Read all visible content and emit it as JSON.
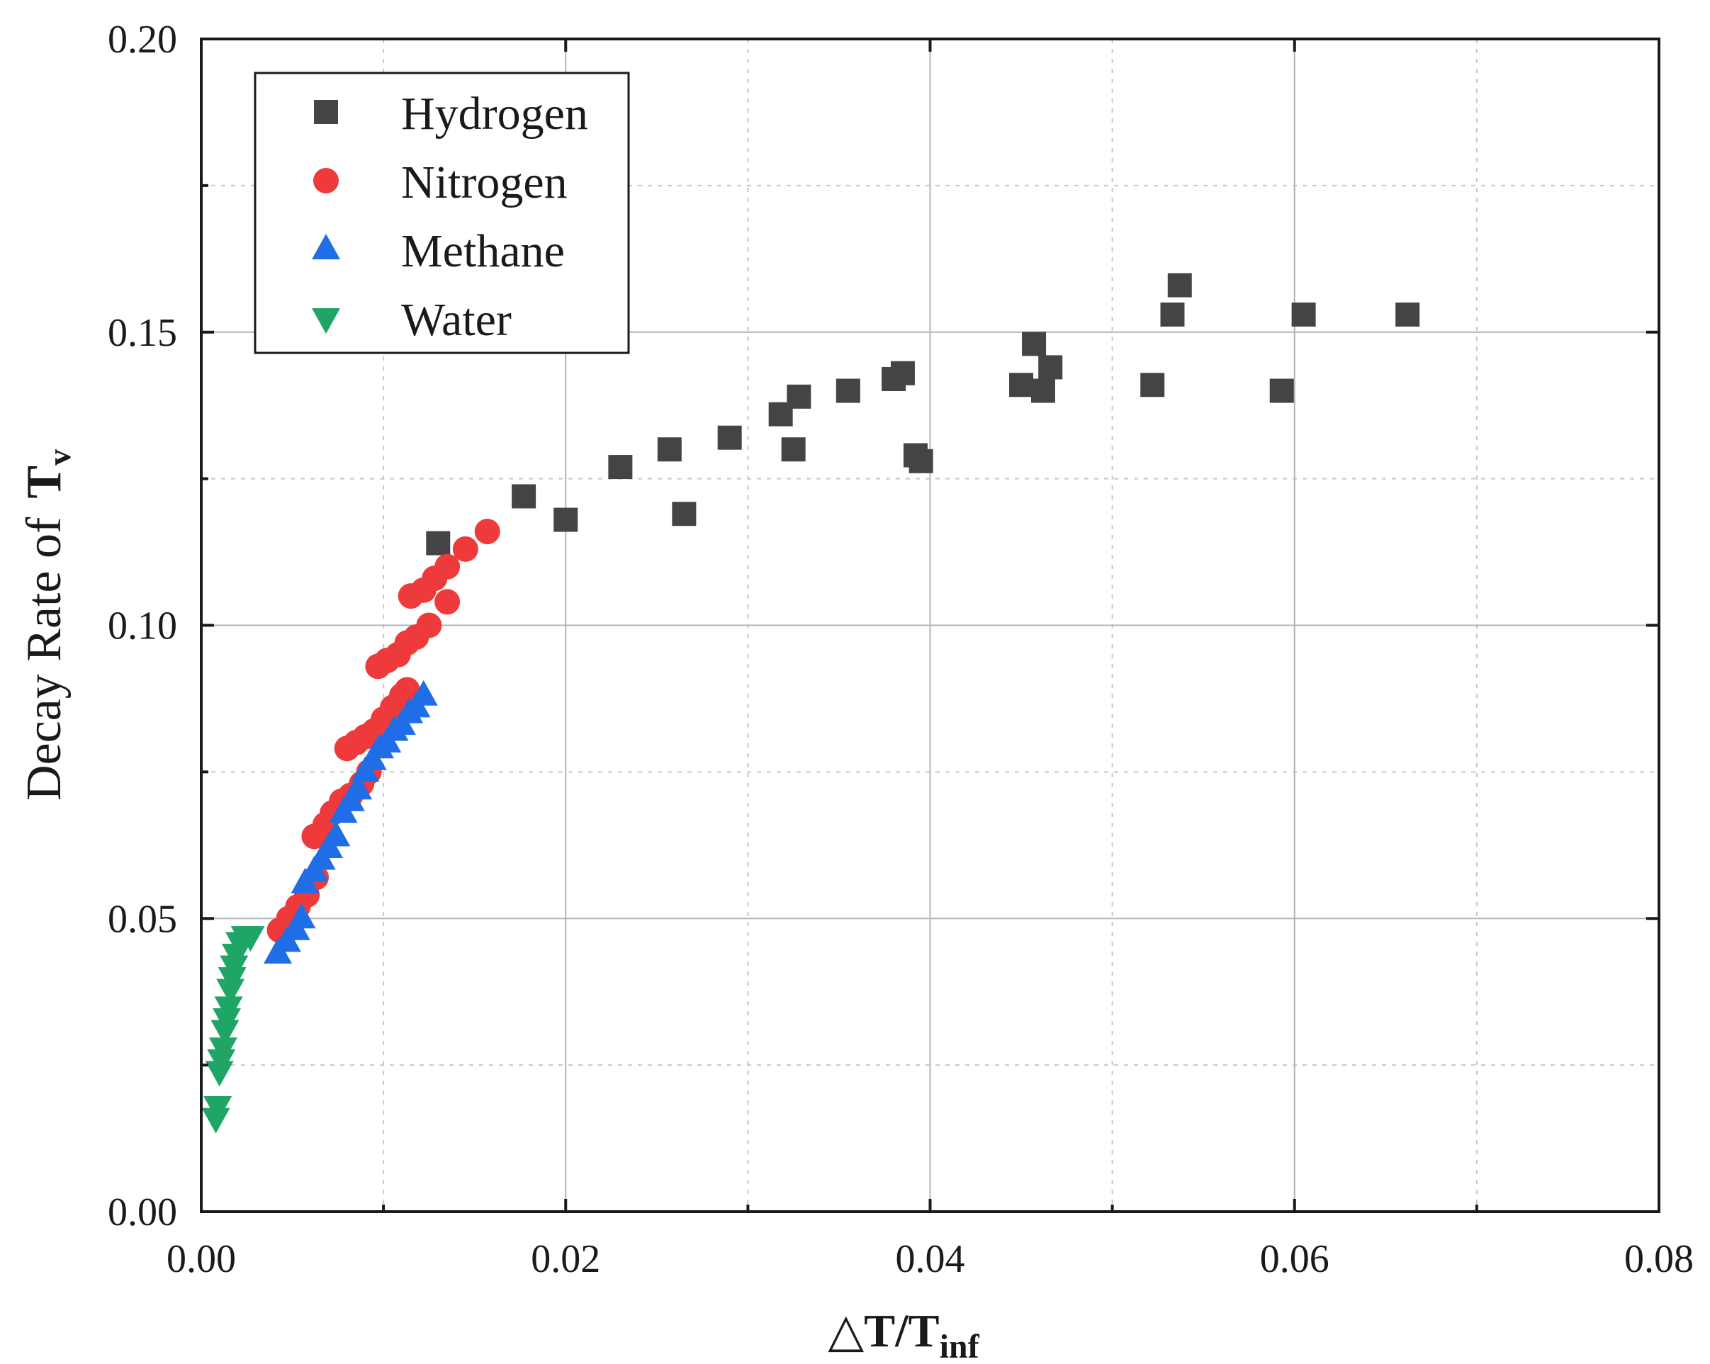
{
  "chart_data": {
    "type": "scatter",
    "title": "",
    "xlabel": {
      "main": "△T/T",
      "sub": "inf"
    },
    "ylabel": {
      "main": "Decay Rate of",
      "symbol": "T",
      "sub": "v"
    },
    "xlim": [
      0,
      0.08
    ],
    "ylim": [
      0,
      0.2
    ],
    "x_major_ticks": [
      0.0,
      0.02,
      0.04,
      0.06,
      0.08
    ],
    "x_tick_labels": [
      "0.00",
      "0.02",
      "0.04",
      "0.06",
      "0.08"
    ],
    "x_minor_ticks": [
      0.01,
      0.03,
      0.05,
      0.07
    ],
    "y_major_ticks": [
      0.0,
      0.05,
      0.1,
      0.15,
      0.2
    ],
    "y_tick_labels": [
      "0.00",
      "0.05",
      "0.10",
      "0.15",
      "0.20"
    ],
    "y_minor_ticks": [
      0.025,
      0.075,
      0.125,
      0.175
    ],
    "grid": true,
    "legend_position": "top-left",
    "series": [
      {
        "name": "Hydrogen",
        "marker": "square",
        "color": "#444444",
        "points": [
          [
            0.013,
            0.114
          ],
          [
            0.0177,
            0.122
          ],
          [
            0.02,
            0.118
          ],
          [
            0.023,
            0.127
          ],
          [
            0.0257,
            0.13
          ],
          [
            0.0265,
            0.119
          ],
          [
            0.029,
            0.132
          ],
          [
            0.0318,
            0.136
          ],
          [
            0.0325,
            0.13
          ],
          [
            0.0328,
            0.139
          ],
          [
            0.0355,
            0.14
          ],
          [
            0.038,
            0.142
          ],
          [
            0.0385,
            0.143
          ],
          [
            0.0392,
            0.129
          ],
          [
            0.0395,
            0.128
          ],
          [
            0.045,
            0.141
          ],
          [
            0.0457,
            0.148
          ],
          [
            0.0462,
            0.14
          ],
          [
            0.0466,
            0.144
          ],
          [
            0.0522,
            0.141
          ],
          [
            0.0533,
            0.153
          ],
          [
            0.0537,
            0.158
          ],
          [
            0.0593,
            0.14
          ],
          [
            0.0605,
            0.153
          ],
          [
            0.0662,
            0.153
          ]
        ]
      },
      {
        "name": "Nitrogen",
        "marker": "circle",
        "color": "#ee3a3a",
        "points": [
          [
            0.0043,
            0.048
          ],
          [
            0.0048,
            0.05
          ],
          [
            0.0053,
            0.052
          ],
          [
            0.0058,
            0.054
          ],
          [
            0.0063,
            0.057
          ],
          [
            0.0062,
            0.064
          ],
          [
            0.0068,
            0.066
          ],
          [
            0.0072,
            0.068
          ],
          [
            0.0077,
            0.07
          ],
          [
            0.0082,
            0.071
          ],
          [
            0.0088,
            0.073
          ],
          [
            0.0092,
            0.075
          ],
          [
            0.008,
            0.079
          ],
          [
            0.0085,
            0.08
          ],
          [
            0.009,
            0.081
          ],
          [
            0.0095,
            0.082
          ],
          [
            0.01,
            0.084
          ],
          [
            0.0105,
            0.086
          ],
          [
            0.011,
            0.088
          ],
          [
            0.0113,
            0.089
          ],
          [
            0.0097,
            0.093
          ],
          [
            0.0102,
            0.094
          ],
          [
            0.0108,
            0.095
          ],
          [
            0.0113,
            0.097
          ],
          [
            0.0118,
            0.098
          ],
          [
            0.0125,
            0.1
          ],
          [
            0.0135,
            0.104
          ],
          [
            0.0115,
            0.105
          ],
          [
            0.0122,
            0.106
          ],
          [
            0.0128,
            0.108
          ],
          [
            0.0135,
            0.11
          ],
          [
            0.0145,
            0.113
          ],
          [
            0.0157,
            0.116
          ]
        ]
      },
      {
        "name": "Methane",
        "marker": "triangle-up",
        "color": "#1f6ee8",
        "points": [
          [
            0.0042,
            0.044
          ],
          [
            0.0047,
            0.046
          ],
          [
            0.0052,
            0.048
          ],
          [
            0.0055,
            0.05
          ],
          [
            0.0057,
            0.056
          ],
          [
            0.0062,
            0.058
          ],
          [
            0.0066,
            0.06
          ],
          [
            0.007,
            0.062
          ],
          [
            0.0074,
            0.064
          ],
          [
            0.0078,
            0.068
          ],
          [
            0.0082,
            0.07
          ],
          [
            0.0086,
            0.072
          ],
          [
            0.009,
            0.075
          ],
          [
            0.0094,
            0.077
          ],
          [
            0.0098,
            0.079
          ],
          [
            0.0102,
            0.08
          ],
          [
            0.0106,
            0.082
          ],
          [
            0.011,
            0.083
          ],
          [
            0.0114,
            0.085
          ],
          [
            0.0118,
            0.086
          ],
          [
            0.0122,
            0.088
          ]
        ]
      },
      {
        "name": "Water",
        "marker": "triangle-down",
        "color": "#1fa566",
        "points": [
          [
            0.0008,
            0.016
          ],
          [
            0.0009,
            0.018
          ],
          [
            0.001,
            0.024
          ],
          [
            0.0011,
            0.026
          ],
          [
            0.0012,
            0.028
          ],
          [
            0.0013,
            0.031
          ],
          [
            0.0014,
            0.033
          ],
          [
            0.0015,
            0.035
          ],
          [
            0.0016,
            0.038
          ],
          [
            0.0017,
            0.04
          ],
          [
            0.0018,
            0.042
          ],
          [
            0.0019,
            0.044
          ],
          [
            0.0021,
            0.046
          ],
          [
            0.0024,
            0.047
          ],
          [
            0.0027,
            0.047
          ]
        ]
      }
    ]
  }
}
